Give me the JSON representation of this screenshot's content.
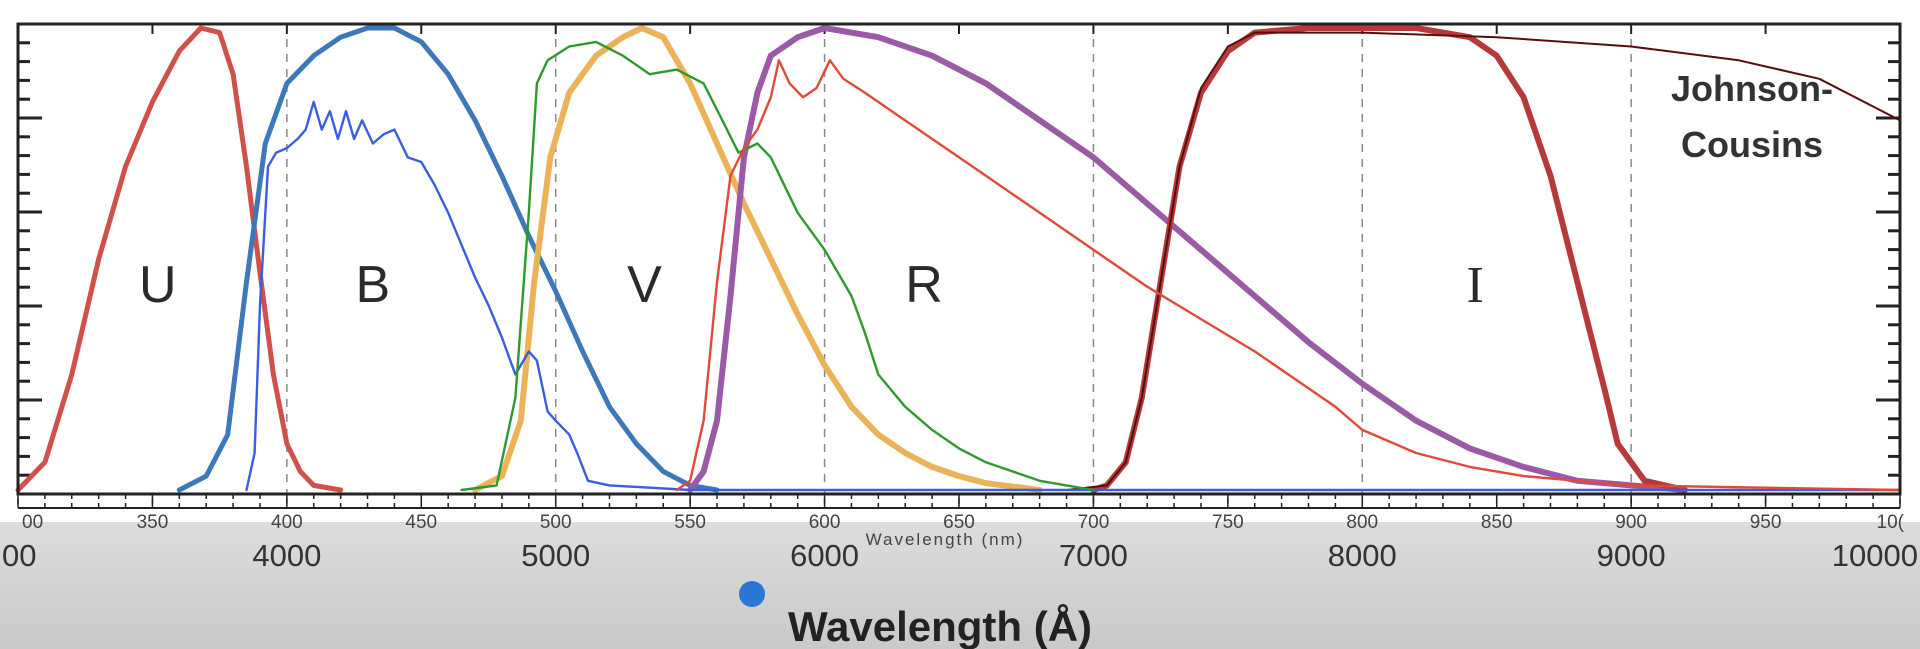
{
  "chart_data": {
    "type": "line",
    "annotation": [
      "Johnson-",
      "Cousins"
    ],
    "xlabel_top": "Wavelength (nm)",
    "xlabel_bottom": "Wavelength (Å)",
    "x_top_ticks": [
      "00",
      "350",
      "400",
      "450",
      "500",
      "550",
      "600",
      "650",
      "700",
      "750",
      "800",
      "850",
      "900",
      "950",
      "10("
    ],
    "x_bottom_ticks": [
      "00",
      "4000",
      "5000",
      "6000",
      "7000",
      "8000",
      "9000",
      "10000"
    ],
    "xlim_nm": [
      300,
      1000
    ],
    "ylim": [
      0,
      1
    ],
    "grid": "dashed vertical lines every 100 nm",
    "band_labels": [
      {
        "label": "U",
        "x": 352
      },
      {
        "label": "B",
        "x": 432
      },
      {
        "label": "V",
        "x": 533
      },
      {
        "label": "R",
        "x": 637
      },
      {
        "label": "I",
        "x": 842
      }
    ],
    "series": [
      {
        "color": "#d0504a",
        "width": 5,
        "points": [
          [
            300,
            0
          ],
          [
            310,
            0.06
          ],
          [
            320,
            0.25
          ],
          [
            330,
            0.5
          ],
          [
            340,
            0.7
          ],
          [
            350,
            0.84
          ],
          [
            360,
            0.95
          ],
          [
            368,
            1.0
          ],
          [
            375,
            0.99
          ],
          [
            380,
            0.9
          ],
          [
            385,
            0.7
          ],
          [
            390,
            0.47
          ],
          [
            395,
            0.25
          ],
          [
            400,
            0.1
          ],
          [
            405,
            0.04
          ],
          [
            410,
            0.01
          ],
          [
            420,
            0
          ]
        ]
      },
      {
        "color": "#3d78b8",
        "width": 5,
        "points": [
          [
            360,
            0
          ],
          [
            370,
            0.03
          ],
          [
            378,
            0.12
          ],
          [
            385,
            0.45
          ],
          [
            392,
            0.75
          ],
          [
            400,
            0.88
          ],
          [
            410,
            0.94
          ],
          [
            420,
            0.98
          ],
          [
            430,
            1.0
          ],
          [
            440,
            1.0
          ],
          [
            450,
            0.97
          ],
          [
            460,
            0.9
          ],
          [
            470,
            0.8
          ],
          [
            480,
            0.68
          ],
          [
            490,
            0.55
          ],
          [
            500,
            0.43
          ],
          [
            510,
            0.3
          ],
          [
            520,
            0.18
          ],
          [
            530,
            0.1
          ],
          [
            540,
            0.04
          ],
          [
            550,
            0.01
          ],
          [
            560,
            0
          ]
        ]
      },
      {
        "color": "#ecb258",
        "width": 6,
        "points": [
          [
            470,
            0
          ],
          [
            480,
            0.03
          ],
          [
            487,
            0.15
          ],
          [
            492,
            0.45
          ],
          [
            498,
            0.72
          ],
          [
            505,
            0.86
          ],
          [
            515,
            0.94
          ],
          [
            525,
            0.98
          ],
          [
            532,
            1.0
          ],
          [
            540,
            0.98
          ],
          [
            550,
            0.88
          ],
          [
            560,
            0.75
          ],
          [
            570,
            0.62
          ],
          [
            580,
            0.5
          ],
          [
            590,
            0.38
          ],
          [
            600,
            0.27
          ],
          [
            610,
            0.18
          ],
          [
            620,
            0.12
          ],
          [
            630,
            0.08
          ],
          [
            640,
            0.05
          ],
          [
            650,
            0.03
          ],
          [
            660,
            0.015
          ],
          [
            680,
            0
          ]
        ]
      },
      {
        "color": "#9b5aa6",
        "width": 6,
        "points": [
          [
            550,
            0
          ],
          [
            555,
            0.04
          ],
          [
            560,
            0.15
          ],
          [
            565,
            0.42
          ],
          [
            570,
            0.72
          ],
          [
            575,
            0.86
          ],
          [
            580,
            0.94
          ],
          [
            590,
            0.98
          ],
          [
            600,
            1.0
          ],
          [
            620,
            0.98
          ],
          [
            640,
            0.94
          ],
          [
            660,
            0.88
          ],
          [
            680,
            0.8
          ],
          [
            700,
            0.72
          ],
          [
            720,
            0.62
          ],
          [
            740,
            0.52
          ],
          [
            760,
            0.42
          ],
          [
            780,
            0.32
          ],
          [
            800,
            0.23
          ],
          [
            820,
            0.15
          ],
          [
            840,
            0.09
          ],
          [
            860,
            0.05
          ],
          [
            880,
            0.02
          ],
          [
            900,
            0.01
          ],
          [
            920,
            0
          ]
        ]
      },
      {
        "color": "#b73a3a",
        "width": 6,
        "points": [
          [
            700,
            0
          ],
          [
            705,
            0.01
          ],
          [
            712,
            0.06
          ],
          [
            718,
            0.2
          ],
          [
            725,
            0.45
          ],
          [
            732,
            0.7
          ],
          [
            740,
            0.86
          ],
          [
            750,
            0.95
          ],
          [
            760,
            0.99
          ],
          [
            780,
            1.0
          ],
          [
            800,
            1.0
          ],
          [
            820,
            1.0
          ],
          [
            840,
            0.98
          ],
          [
            850,
            0.94
          ],
          [
            860,
            0.85
          ],
          [
            870,
            0.68
          ],
          [
            880,
            0.45
          ],
          [
            890,
            0.22
          ],
          [
            895,
            0.1
          ],
          [
            905,
            0.02
          ],
          [
            920,
            0
          ]
        ]
      },
      {
        "color": "#5a0d0d",
        "width": 2,
        "points": [
          [
            690,
            0
          ],
          [
            705,
            0.01
          ],
          [
            712,
            0.06
          ],
          [
            718,
            0.2
          ],
          [
            725,
            0.45
          ],
          [
            732,
            0.7
          ],
          [
            740,
            0.87
          ],
          [
            750,
            0.96
          ],
          [
            760,
            0.99
          ],
          [
            800,
            0.99
          ],
          [
            850,
            0.98
          ],
          [
            900,
            0.96
          ],
          [
            940,
            0.93
          ],
          [
            970,
            0.89
          ],
          [
            1000,
            0.8
          ]
        ]
      },
      {
        "color": "#3b5de0",
        "width": 2.4,
        "points": [
          [
            385,
            0
          ],
          [
            388,
            0.08
          ],
          [
            390,
            0.4
          ],
          [
            393,
            0.7
          ],
          [
            396,
            0.73
          ],
          [
            400,
            0.74
          ],
          [
            404,
            0.76
          ],
          [
            407,
            0.78
          ],
          [
            410,
            0.84
          ],
          [
            413,
            0.78
          ],
          [
            416,
            0.82
          ],
          [
            419,
            0.76
          ],
          [
            422,
            0.82
          ],
          [
            425,
            0.76
          ],
          [
            428,
            0.8
          ],
          [
            432,
            0.75
          ],
          [
            436,
            0.77
          ],
          [
            440,
            0.78
          ],
          [
            445,
            0.72
          ],
          [
            450,
            0.71
          ],
          [
            455,
            0.66
          ],
          [
            460,
            0.6
          ],
          [
            465,
            0.53
          ],
          [
            470,
            0.46
          ],
          [
            475,
            0.4
          ],
          [
            480,
            0.33
          ],
          [
            485,
            0.25
          ],
          [
            490,
            0.3
          ],
          [
            493,
            0.28
          ],
          [
            497,
            0.17
          ],
          [
            500,
            0.15
          ],
          [
            505,
            0.12
          ],
          [
            508,
            0.08
          ],
          [
            512,
            0.02
          ],
          [
            520,
            0.01
          ],
          [
            550,
            0.0
          ],
          [
            1000,
            0.0
          ]
        ]
      },
      {
        "color": "#2e9a2e",
        "width": 2.4,
        "points": [
          [
            465,
            0
          ],
          [
            478,
            0.01
          ],
          [
            485,
            0.2
          ],
          [
            490,
            0.6
          ],
          [
            493,
            0.88
          ],
          [
            497,
            0.93
          ],
          [
            505,
            0.96
          ],
          [
            515,
            0.97
          ],
          [
            525,
            0.94
          ],
          [
            535,
            0.9
          ],
          [
            545,
            0.91
          ],
          [
            555,
            0.88
          ],
          [
            562,
            0.8
          ],
          [
            568,
            0.73
          ],
          [
            575,
            0.75
          ],
          [
            580,
            0.72
          ],
          [
            590,
            0.6
          ],
          [
            600,
            0.52
          ],
          [
            610,
            0.42
          ],
          [
            615,
            0.34
          ],
          [
            620,
            0.25
          ],
          [
            630,
            0.18
          ],
          [
            640,
            0.13
          ],
          [
            650,
            0.09
          ],
          [
            660,
            0.06
          ],
          [
            670,
            0.04
          ],
          [
            680,
            0.02
          ],
          [
            690,
            0.01
          ],
          [
            700,
            0
          ]
        ]
      },
      {
        "color": "#e04a3a",
        "width": 2.4,
        "points": [
          [
            545,
            0
          ],
          [
            550,
            0.02
          ],
          [
            555,
            0.15
          ],
          [
            560,
            0.45
          ],
          [
            565,
            0.68
          ],
          [
            570,
            0.74
          ],
          [
            575,
            0.78
          ],
          [
            580,
            0.85
          ],
          [
            583,
            0.93
          ],
          [
            587,
            0.88
          ],
          [
            592,
            0.85
          ],
          [
            597,
            0.87
          ],
          [
            602,
            0.93
          ],
          [
            607,
            0.89
          ],
          [
            615,
            0.86
          ],
          [
            625,
            0.82
          ],
          [
            640,
            0.76
          ],
          [
            660,
            0.68
          ],
          [
            680,
            0.6
          ],
          [
            700,
            0.52
          ],
          [
            720,
            0.44
          ],
          [
            740,
            0.37
          ],
          [
            760,
            0.3
          ],
          [
            775,
            0.24
          ],
          [
            790,
            0.18
          ],
          [
            800,
            0.13
          ],
          [
            820,
            0.08
          ],
          [
            840,
            0.05
          ],
          [
            860,
            0.03
          ],
          [
            880,
            0.02
          ],
          [
            900,
            0.01
          ],
          [
            1000,
            0.0
          ]
        ]
      }
    ]
  }
}
